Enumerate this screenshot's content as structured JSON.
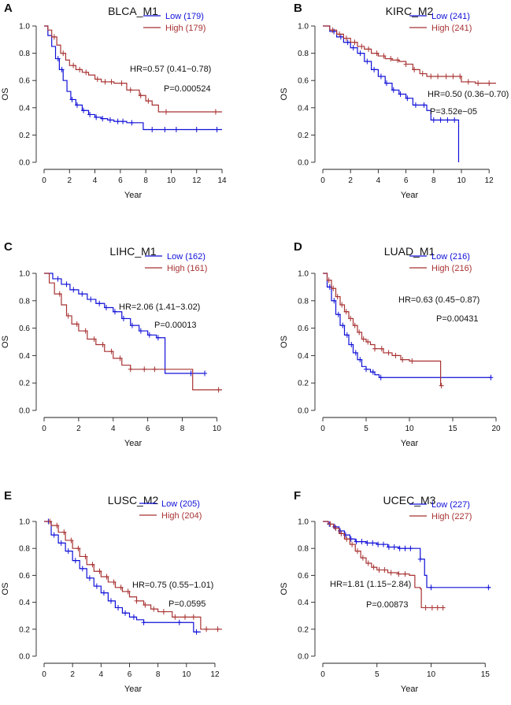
{
  "figure": {
    "xlabel": "Year",
    "ylabel": "OS"
  },
  "colors": {
    "low": "#1010d8",
    "high": "#a83232",
    "axis": "#222222"
  },
  "chart_data": [
    {
      "type": "line",
      "letter": "A",
      "title": "BLCA_M1",
      "xlabel": "Year",
      "ylabel": "OS",
      "xlim": [
        0,
        14
      ],
      "ylim": [
        0,
        1
      ],
      "xticks": [
        0,
        2,
        4,
        6,
        8,
        10,
        12,
        14
      ],
      "yticks": [
        0.0,
        0.2,
        0.4,
        0.6,
        0.8,
        1.0
      ],
      "ytick_labels": [
        "0.0",
        "0.2",
        "0.4",
        "0.6",
        "0.8",
        "1.0"
      ],
      "legend": {
        "position": "top-right",
        "low": "Low (179)",
        "high": "High (179)"
      },
      "hr": "HR=0.57 (0.41−0.78)",
      "p": "P=0.000524",
      "series": [
        {
          "name": "Low (179)",
          "group": "low",
          "x": [
            0,
            0.3,
            0.6,
            0.9,
            1.2,
            1.5,
            1.8,
            2.1,
            2.5,
            3,
            3.5,
            4,
            4.5,
            5,
            5.5,
            6,
            6.5,
            7,
            7.7,
            7.8,
            10,
            14
          ],
          "y": [
            1,
            0.93,
            0.85,
            0.76,
            0.68,
            0.6,
            0.52,
            0.46,
            0.42,
            0.38,
            0.35,
            0.33,
            0.32,
            0.31,
            0.3,
            0.3,
            0.29,
            0.29,
            0.29,
            0.24,
            0.24,
            0.24
          ],
          "censor_x": [
            1.1,
            1.4,
            2.2,
            2.6,
            3.1,
            3.6,
            4.1,
            4.6,
            5.2,
            5.8,
            6.2,
            6.9,
            8.5,
            9.5,
            10.4,
            12,
            13.6
          ]
        },
        {
          "name": "High (179)",
          "group": "high",
          "x": [
            0,
            0.3,
            0.6,
            1,
            1.3,
            1.7,
            2,
            2.5,
            3,
            3.5,
            4,
            4.5,
            5,
            5.5,
            6,
            6.5,
            7,
            7.5,
            8,
            8.5,
            9,
            10,
            14
          ],
          "y": [
            1,
            0.97,
            0.92,
            0.86,
            0.8,
            0.75,
            0.71,
            0.68,
            0.66,
            0.64,
            0.61,
            0.59,
            0.59,
            0.58,
            0.58,
            0.53,
            0.53,
            0.49,
            0.45,
            0.42,
            0.37,
            0.37,
            0.37
          ],
          "censor_x": [
            0.8,
            1.5,
            2.3,
            2.8,
            3.3,
            4.2,
            4.8,
            5.3,
            6.1,
            6.8,
            7.6,
            8.2,
            9.6,
            13.5
          ]
        }
      ]
    },
    {
      "type": "line",
      "letter": "B",
      "title": "KIRC_M2",
      "xlabel": "Year",
      "ylabel": "OS",
      "xlim": [
        0,
        12.5
      ],
      "ylim": [
        0,
        1
      ],
      "xticks": [
        0,
        2,
        4,
        6,
        8,
        10,
        12
      ],
      "yticks": [
        0.0,
        0.2,
        0.4,
        0.6,
        0.8,
        1.0
      ],
      "ytick_labels": [
        "0.0",
        "0.2",
        "0.4",
        "0.6",
        "0.8",
        "1.0"
      ],
      "legend": {
        "position": "top-right",
        "low": "Low (241)",
        "high": "High (241)"
      },
      "hr": "HR=0.50 (0.36−0.70)",
      "p": "P=3.52e−05",
      "series": [
        {
          "name": "Low (241)",
          "group": "low",
          "x": [
            0,
            0.5,
            1,
            1.5,
            2,
            2.5,
            3,
            3.5,
            4,
            4.5,
            5,
            5.5,
            6,
            6.5,
            7,
            7.5,
            7.8,
            8.5,
            9.5,
            9.8,
            9.8
          ],
          "y": [
            1,
            0.96,
            0.92,
            0.88,
            0.84,
            0.8,
            0.74,
            0.68,
            0.63,
            0.58,
            0.53,
            0.5,
            0.47,
            0.42,
            0.42,
            0.38,
            0.31,
            0.31,
            0.31,
            0.31,
            0
          ],
          "censor_x": [
            0.8,
            1.3,
            1.8,
            2.2,
            2.7,
            3.2,
            3.7,
            4.2,
            4.6,
            5.1,
            5.6,
            6.1,
            6.7,
            7.3,
            8.0,
            8.5,
            9.0,
            9.5
          ]
        },
        {
          "name": "High (241)",
          "group": "high",
          "x": [
            0,
            0.5,
            1,
            1.5,
            2,
            2.5,
            3,
            3.5,
            4,
            4.5,
            5,
            5.5,
            6,
            6.5,
            7,
            7.5,
            8,
            9,
            10,
            11,
            12.5
          ],
          "y": [
            1,
            0.97,
            0.94,
            0.91,
            0.88,
            0.85,
            0.83,
            0.8,
            0.78,
            0.76,
            0.75,
            0.74,
            0.72,
            0.68,
            0.65,
            0.63,
            0.63,
            0.63,
            0.59,
            0.58,
            0.58
          ],
          "censor_x": [
            0.7,
            1.2,
            1.7,
            2.3,
            2.8,
            3.3,
            3.9,
            4.4,
            4.9,
            5.4,
            6.0,
            6.6,
            7.2,
            7.8,
            8.3,
            8.9,
            9.4,
            9.9,
            10.5,
            11.2,
            12.0
          ]
        }
      ]
    },
    {
      "type": "line",
      "letter": "C",
      "title": "LIHC_M1",
      "xlabel": "Year",
      "ylabel": "OS",
      "xlim": [
        0,
        10.3
      ],
      "ylim": [
        0,
        1
      ],
      "xticks": [
        0,
        2,
        4,
        6,
        8,
        10
      ],
      "yticks": [
        0.0,
        0.2,
        0.4,
        0.6,
        0.8,
        1.0
      ],
      "ytick_labels": [
        "0.0",
        "0.2",
        "0.4",
        "0.6",
        "0.8",
        "1.0"
      ],
      "legend": {
        "position": "top-right",
        "low": "Low (162)",
        "high": "High (161)"
      },
      "hr": "HR=2.06 (1.41−3.02)",
      "p": "P=0.00013",
      "series": [
        {
          "name": "Low (162)",
          "group": "low",
          "x": [
            0,
            0.5,
            1,
            1.5,
            2,
            2.5,
            3,
            3.5,
            4,
            4.5,
            5,
            5.5,
            6,
            6.5,
            6.9,
            7,
            9.3
          ],
          "y": [
            1,
            0.96,
            0.92,
            0.88,
            0.85,
            0.81,
            0.78,
            0.75,
            0.72,
            0.67,
            0.62,
            0.58,
            0.55,
            0.53,
            0.53,
            0.27,
            0.27
          ],
          "censor_x": [
            0.8,
            1.3,
            1.7,
            2.2,
            2.7,
            3.2,
            3.6,
            4.1,
            4.6,
            5.1,
            5.6,
            6.1,
            6.6,
            8.5,
            9.3
          ]
        },
        {
          "name": "High (161)",
          "group": "high",
          "x": [
            0,
            0.3,
            0.6,
            1,
            1.3,
            1.6,
            2,
            2.5,
            3,
            3.5,
            4,
            4.5,
            5,
            6,
            7,
            8.5,
            8.6,
            10.3
          ],
          "y": [
            1,
            0.93,
            0.85,
            0.77,
            0.69,
            0.63,
            0.58,
            0.52,
            0.48,
            0.43,
            0.38,
            0.33,
            0.3,
            0.3,
            0.3,
            0.3,
            0.15,
            0.15
          ],
          "censor_x": [
            0.9,
            1.4,
            1.9,
            2.4,
            2.9,
            3.4,
            3.9,
            4.4,
            5.0,
            5.8,
            6.4,
            10.1
          ]
        }
      ]
    },
    {
      "type": "line",
      "letter": "D",
      "title": "LUAD_M1",
      "xlabel": "Year",
      "ylabel": "OS",
      "xlim": [
        0,
        20
      ],
      "ylim": [
        0,
        1
      ],
      "xticks": [
        0,
        5,
        10,
        15,
        20
      ],
      "yticks": [
        0.0,
        0.2,
        0.4,
        0.6,
        0.8,
        1.0
      ],
      "ytick_labels": [
        "0.0",
        "0.2",
        "0.4",
        "0.6",
        "0.8",
        "1.0"
      ],
      "legend": {
        "position": "top-right",
        "low": "Low (216)",
        "high": "High (216)"
      },
      "hr": "HR=0.63 (0.45−0.87)",
      "p": "P=0.00431",
      "series": [
        {
          "name": "Low (216)",
          "group": "low",
          "x": [
            0,
            0.5,
            1,
            1.5,
            2,
            2.5,
            3,
            3.5,
            4,
            4.5,
            5,
            5.5,
            6,
            6.5,
            7,
            19.5
          ],
          "y": [
            1,
            0.9,
            0.8,
            0.7,
            0.62,
            0.55,
            0.48,
            0.42,
            0.37,
            0.32,
            0.3,
            0.28,
            0.26,
            0.24,
            0.24,
            0.24
          ],
          "censor_x": [
            0.8,
            1.3,
            1.8,
            2.3,
            2.8,
            3.3,
            3.8,
            4.3,
            5.0,
            5.8,
            6.7,
            19.4
          ]
        },
        {
          "name": "High (216)",
          "group": "high",
          "x": [
            0,
            0.5,
            1,
            1.5,
            2,
            2.5,
            3,
            3.5,
            4,
            4.5,
            5,
            5.5,
            6,
            7,
            8,
            9,
            10,
            11,
            12,
            13.5,
            13.6,
            13.7
          ],
          "y": [
            1,
            0.95,
            0.89,
            0.83,
            0.77,
            0.72,
            0.67,
            0.62,
            0.57,
            0.52,
            0.5,
            0.48,
            0.45,
            0.42,
            0.4,
            0.37,
            0.36,
            0.36,
            0.36,
            0.36,
            0.18,
            0.18
          ],
          "censor_x": [
            0.7,
            1.2,
            1.7,
            2.2,
            2.7,
            3.2,
            3.7,
            4.2,
            4.7,
            5.2,
            6.0,
            6.8,
            7.6,
            8.4,
            9.2,
            10.3,
            13.7
          ]
        }
      ]
    },
    {
      "type": "line",
      "letter": "E",
      "title": "LUSC_M2",
      "xlabel": "Year",
      "ylabel": "OS",
      "xlim": [
        0,
        12.5
      ],
      "ylim": [
        0,
        1
      ],
      "xticks": [
        0,
        2,
        4,
        6,
        8,
        10,
        12
      ],
      "yticks": [
        0.0,
        0.2,
        0.4,
        0.6,
        0.8,
        1.0
      ],
      "ytick_labels": [
        "0.0",
        "0.2",
        "0.4",
        "0.6",
        "0.8",
        "1.0"
      ],
      "legend": {
        "position": "top-right",
        "low": "Low (205)",
        "high": "High (204)"
      },
      "hr": "HR=0.75 (0.55−1.01)",
      "p": "P=0.0595",
      "series": [
        {
          "name": "Low (205)",
          "group": "low",
          "x": [
            0,
            0.5,
            1,
            1.5,
            2,
            2.5,
            3,
            3.5,
            4,
            4.5,
            5,
            5.5,
            6,
            6.5,
            7,
            8,
            9,
            10,
            10.5,
            11
          ],
          "y": [
            1,
            0.9,
            0.84,
            0.78,
            0.71,
            0.65,
            0.58,
            0.52,
            0.47,
            0.41,
            0.36,
            0.32,
            0.29,
            0.27,
            0.25,
            0.25,
            0.25,
            0.25,
            0.18,
            0.18
          ],
          "censor_x": [
            0.3,
            0.7,
            1.2,
            1.7,
            2.2,
            2.7,
            3.2,
            3.7,
            4.2,
            4.7,
            5.2,
            5.7,
            6.3,
            7.0,
            9.5,
            10.7
          ]
        },
        {
          "name": "High (204)",
          "group": "high",
          "x": [
            0,
            0.5,
            1,
            1.5,
            2,
            2.5,
            3,
            3.5,
            4,
            4.5,
            5,
            5.5,
            6,
            6.5,
            7,
            7.5,
            8,
            9,
            10.5,
            11,
            12.5
          ],
          "y": [
            1,
            0.97,
            0.92,
            0.86,
            0.8,
            0.74,
            0.68,
            0.63,
            0.59,
            0.55,
            0.51,
            0.48,
            0.44,
            0.41,
            0.38,
            0.35,
            0.33,
            0.29,
            0.29,
            0.2,
            0.2
          ],
          "censor_x": [
            0.4,
            0.9,
            1.4,
            1.9,
            2.4,
            2.9,
            3.4,
            3.9,
            4.4,
            4.9,
            5.4,
            5.9,
            6.5,
            7.1,
            7.7,
            8.4,
            9.2,
            9.9,
            10.5,
            11.4,
            12.2
          ]
        }
      ]
    },
    {
      "type": "line",
      "letter": "F",
      "title": "UCEC_M3",
      "xlabel": "Year",
      "ylabel": "OS",
      "xlim": [
        0,
        16
      ],
      "ylim": [
        0,
        1
      ],
      "xticks": [
        0,
        5,
        10,
        15
      ],
      "yticks": [
        0.0,
        0.2,
        0.4,
        0.6,
        0.8,
        1.0
      ],
      "ytick_labels": [
        "0.0",
        "0.2",
        "0.4",
        "0.6",
        "0.8",
        "1.0"
      ],
      "legend": {
        "position": "top-right",
        "low": "Low (227)",
        "high": "High (227)"
      },
      "hr": "HR=1.81 (1.15−2.84)",
      "p": "P=0.00873",
      "series": [
        {
          "name": "Low (227)",
          "group": "low",
          "x": [
            0,
            0.5,
            1,
            1.5,
            2,
            2.5,
            3,
            4,
            5,
            6,
            7,
            8,
            9,
            9.2,
            9.4,
            9.6,
            15.5
          ],
          "y": [
            1,
            0.98,
            0.96,
            0.93,
            0.9,
            0.87,
            0.85,
            0.84,
            0.83,
            0.81,
            0.8,
            0.8,
            0.72,
            0.72,
            0.6,
            0.51,
            0.51
          ],
          "censor_x": [
            0.6,
            1.1,
            1.6,
            2.1,
            2.6,
            3.1,
            3.6,
            4.1,
            4.6,
            5.1,
            5.6,
            6.1,
            6.6,
            7.1,
            7.6,
            8.1,
            9.0,
            10.0,
            15.3
          ]
        },
        {
          "name": "High (227)",
          "group": "high",
          "x": [
            0,
            0.5,
            1,
            1.5,
            2,
            2.5,
            3,
            3.5,
            4,
            4.5,
            5,
            6,
            7,
            8,
            8.5,
            9,
            9.1,
            11.2
          ],
          "y": [
            1,
            0.98,
            0.95,
            0.91,
            0.87,
            0.83,
            0.78,
            0.73,
            0.69,
            0.66,
            0.64,
            0.62,
            0.61,
            0.6,
            0.51,
            0.5,
            0.36,
            0.36
          ],
          "censor_x": [
            0.7,
            1.2,
            1.7,
            2.2,
            2.7,
            3.2,
            3.7,
            4.2,
            4.7,
            5.2,
            5.7,
            6.3,
            7.0,
            7.6,
            9.5,
            10.1,
            10.6,
            11.1
          ]
        }
      ]
    }
  ]
}
